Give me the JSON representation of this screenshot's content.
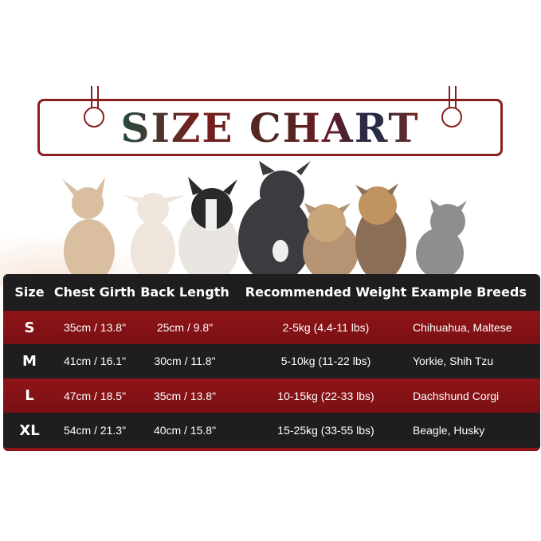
{
  "title": "SIZE CHART",
  "colors": {
    "accent_red": "#8f1418",
    "dark_row": "#1f1d1d",
    "banner_border": "#8a1f1f"
  },
  "images": [
    "chihuahua",
    "chihuahua",
    "french-bulldog",
    "french-bulldog",
    "yorkshire-terrier",
    "yorkshire-terrier",
    "kitten"
  ],
  "table": {
    "headers": [
      "Size",
      "Chest Girth",
      "Back Length",
      "Recommended Weight",
      "Example Breeds"
    ],
    "rows": [
      {
        "size": "S",
        "chest": "35cm / 13.8\"",
        "back": "25cm / 9.8\"",
        "weight": "2-5kg (4.4-11 lbs)",
        "breeds": "Chihuahua, Maltese"
      },
      {
        "size": "M",
        "chest": "41cm / 16.1\"",
        "back": "30cm / 11.8\"",
        "weight": "5-10kg (11-22 lbs)",
        "breeds": "Yorkie, Shih Tzu"
      },
      {
        "size": "L",
        "chest": "47cm / 18.5\"",
        "back": "35cm / 13.8\"",
        "weight": "10-15kg (22-33 lbs)",
        "breeds": "Dachshund Corgi"
      },
      {
        "size": "XL",
        "chest": "54cm / 21.3\"",
        "back": "40cm / 15.8\"",
        "weight": "15-25kg (33-55 lbs)",
        "breeds": "Beagle, Husky"
      }
    ]
  }
}
